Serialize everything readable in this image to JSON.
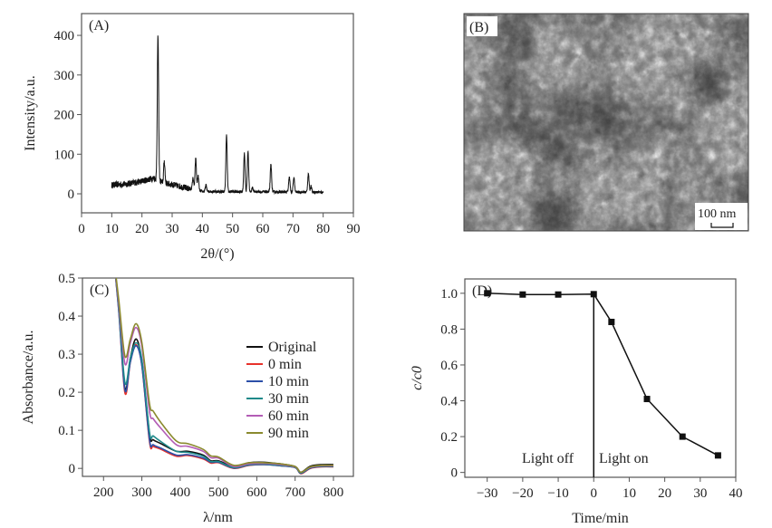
{
  "chart_data": [
    {
      "panel": "(A)",
      "type": "line",
      "xlabel": "2θ/(°)",
      "ylabel": "Intensity/a.u.",
      "xlim": [
        0,
        90
      ],
      "ylim": [
        -48,
        455
      ],
      "xticks": [
        0,
        10,
        20,
        30,
        40,
        50,
        60,
        70,
        80,
        90
      ],
      "yticks": [
        0,
        100,
        200,
        300,
        400
      ],
      "x_range": [
        10,
        80
      ],
      "baseline": [
        [
          10,
          22
        ],
        [
          15,
          25
        ],
        [
          20,
          32
        ],
        [
          24,
          40
        ],
        [
          27,
          28
        ],
        [
          32,
          20
        ],
        [
          36,
          12
        ],
        [
          40,
          6
        ],
        [
          80,
          4
        ]
      ],
      "peaks": [
        {
          "x": 25.3,
          "y": 400
        },
        {
          "x": 27.4,
          "y": 82
        },
        {
          "x": 36.9,
          "y": 40
        },
        {
          "x": 37.8,
          "y": 90
        },
        {
          "x": 38.6,
          "y": 45
        },
        {
          "x": 41.2,
          "y": 22
        },
        {
          "x": 48.0,
          "y": 150
        },
        {
          "x": 53.9,
          "y": 102
        },
        {
          "x": 55.1,
          "y": 108
        },
        {
          "x": 56.6,
          "y": 15
        },
        {
          "x": 62.7,
          "y": 74
        },
        {
          "x": 68.8,
          "y": 42
        },
        {
          "x": 70.3,
          "y": 42
        },
        {
          "x": 75.1,
          "y": 52
        },
        {
          "x": 76.0,
          "y": 20
        }
      ],
      "color": "#111111"
    },
    {
      "panel": "(B)",
      "type": "image",
      "scale_bar": "100 nm"
    },
    {
      "panel": "(C)",
      "type": "line",
      "xlabel": "λ/nm",
      "ylabel": "Absorbance/a.u.",
      "xlim": [
        145,
        852
      ],
      "ylim": [
        -0.021,
        0.5
      ],
      "xticks": [
        200,
        300,
        400,
        500,
        600,
        700,
        800
      ],
      "yticks": [
        0,
        0.1,
        0.2,
        0.3,
        0.4,
        0.5
      ],
      "ytick_labels": [
        "0",
        "0.1",
        "0.2",
        "0.3",
        "0.4",
        "0.5"
      ],
      "legend": "right",
      "x": [
        226,
        240,
        256,
        270,
        285,
        300,
        320,
        330,
        350,
        390,
        420,
        460,
        480,
        500,
        540,
        580,
        620,
        660,
        700,
        715,
        740,
        770,
        800
      ],
      "series": [
        {
          "name": "Original",
          "color": "#111111",
          "values": [
            0.56,
            0.42,
            0.21,
            0.29,
            0.34,
            0.28,
            0.09,
            0.075,
            0.065,
            0.045,
            0.045,
            0.035,
            0.02,
            0.02,
            0.005,
            0.015,
            0.016,
            0.012,
            0.005,
            -0.01,
            0.006,
            0.01,
            0.01
          ]
        },
        {
          "name": "0 min",
          "color": "#e8322b",
          "values": [
            0.56,
            0.41,
            0.198,
            0.28,
            0.325,
            0.27,
            0.07,
            0.058,
            0.05,
            0.032,
            0.034,
            0.025,
            0.014,
            0.015,
            0.0,
            0.008,
            0.01,
            0.007,
            0.002,
            -0.014,
            0.0,
            0.004,
            0.004
          ]
        },
        {
          "name": "10 min",
          "color": "#2c4fa8",
          "values": [
            0.56,
            0.41,
            0.205,
            0.28,
            0.322,
            0.27,
            0.075,
            0.062,
            0.053,
            0.035,
            0.036,
            0.027,
            0.016,
            0.016,
            0.001,
            0.009,
            0.01,
            0.007,
            0.002,
            -0.013,
            0.001,
            0.005,
            0.005
          ]
        },
        {
          "name": "30 min",
          "color": "#1f8a8a",
          "values": [
            0.56,
            0.42,
            0.225,
            0.29,
            0.33,
            0.285,
            0.095,
            0.085,
            0.07,
            0.045,
            0.042,
            0.032,
            0.018,
            0.018,
            0.002,
            0.01,
            0.011,
            0.008,
            0.003,
            -0.012,
            0.002,
            0.006,
            0.006
          ]
        },
        {
          "name": "60 min",
          "color": "#b35cb5",
          "values": [
            0.56,
            0.43,
            0.275,
            0.33,
            0.37,
            0.32,
            0.15,
            0.13,
            0.105,
            0.062,
            0.058,
            0.045,
            0.028,
            0.027,
            0.005,
            0.012,
            0.013,
            0.01,
            0.004,
            -0.01,
            0.003,
            0.007,
            0.007
          ]
        },
        {
          "name": "90 min",
          "color": "#8a8a2e",
          "values": [
            0.56,
            0.44,
            0.295,
            0.34,
            0.38,
            0.33,
            0.17,
            0.15,
            0.12,
            0.072,
            0.065,
            0.05,
            0.033,
            0.03,
            0.008,
            0.015,
            0.015,
            0.012,
            0.005,
            -0.01,
            0.004,
            0.008,
            0.008
          ]
        }
      ]
    },
    {
      "panel": "(D)",
      "type": "line",
      "xlabel": "Time/min",
      "ylabel": "c/c0",
      "xlim": [
        -36.3,
        40
      ],
      "ylim": [
        -0.027,
        1.08
      ],
      "xticks": [
        -30,
        -20,
        -10,
        0,
        10,
        20,
        30,
        40
      ],
      "xtick_labels": [
        "−30",
        "−20",
        "−10",
        "0",
        "10",
        "20",
        "30",
        "40"
      ],
      "yticks": [
        0,
        0.2,
        0.4,
        0.6,
        0.8,
        1.0
      ],
      "ytick_labels": [
        "0",
        "0.2",
        "0.4",
        "0.6",
        "0.8",
        "1.0"
      ],
      "x": [
        -30,
        -20,
        -10,
        0,
        5,
        15,
        25,
        35
      ],
      "values": [
        1.0,
        0.993,
        0.993,
        0.995,
        0.84,
        0.41,
        0.2,
        0.095
      ],
      "marker_line_x": 0,
      "annotations": {
        "left": "Light off",
        "right": "Light on"
      },
      "color": "#111111"
    }
  ]
}
